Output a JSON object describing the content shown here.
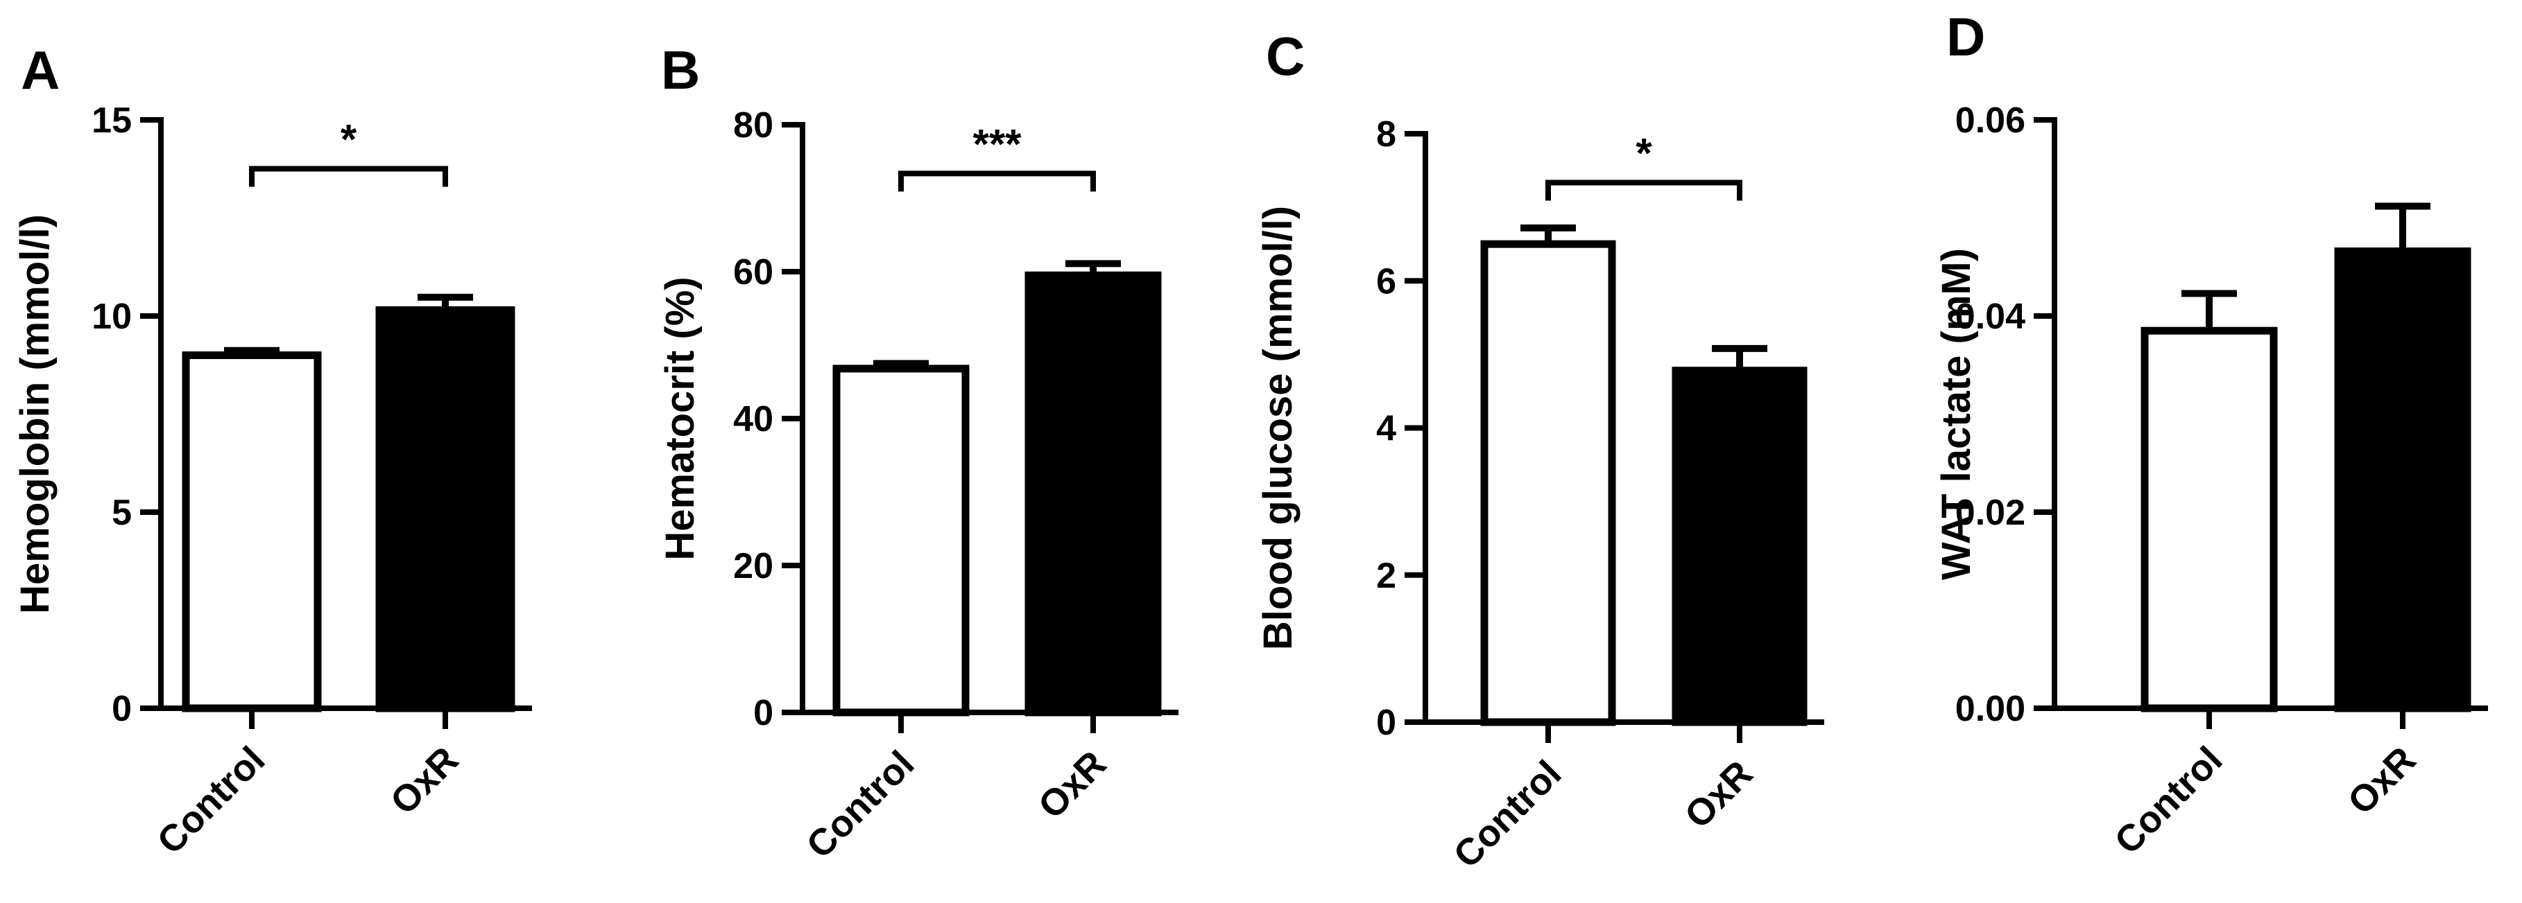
{
  "chart_data": [
    {
      "type": "bar",
      "panel_label": "A",
      "categories": [
        "Control",
        "OxR"
      ],
      "values": [
        9.0,
        10.15
      ],
      "errors": [
        0.12,
        0.33
      ],
      "bar_colors": [
        "#ffffff",
        "#000000"
      ],
      "ylabel": "Hemoglobin (mmol/l)",
      "ylim": [
        0,
        15
      ],
      "yticks": [
        0,
        5,
        10,
        15
      ],
      "ytick_labels": [
        "0",
        "5",
        "10",
        "15"
      ],
      "significance": "*"
    },
    {
      "type": "bar",
      "panel_label": "B",
      "categories": [
        "Control",
        "OxR"
      ],
      "values": [
        46.8,
        59.5
      ],
      "errors": [
        0.7,
        1.6
      ],
      "bar_colors": [
        "#ffffff",
        "#000000"
      ],
      "ylabel": "Hematocrit (%)",
      "ylim": [
        0,
        80
      ],
      "yticks": [
        0,
        20,
        40,
        60,
        80
      ],
      "ytick_labels": [
        "0",
        "20",
        "40",
        "60",
        "80"
      ],
      "significance": "***"
    },
    {
      "type": "bar",
      "panel_label": "C",
      "categories": [
        "Control",
        "OxR"
      ],
      "values": [
        6.5,
        4.78
      ],
      "errors": [
        0.22,
        0.3
      ],
      "bar_colors": [
        "#ffffff",
        "#000000"
      ],
      "ylabel": "Blood glucose (mmol/l)",
      "ylim": [
        0,
        8
      ],
      "yticks": [
        0,
        2,
        4,
        6,
        8
      ],
      "ytick_labels": [
        "0",
        "2",
        "4",
        "6",
        "8"
      ],
      "significance": "*"
    },
    {
      "type": "bar",
      "panel_label": "D",
      "categories": [
        "Control",
        "OxR"
      ],
      "values": [
        0.0385,
        0.0466
      ],
      "errors": [
        0.0038,
        0.0046
      ],
      "bar_colors": [
        "#ffffff",
        "#000000"
      ],
      "ylabel": "WAT lactate (mM)",
      "ylim": [
        0,
        0.06
      ],
      "yticks": [
        0,
        0.02,
        0.04,
        0.06
      ],
      "ytick_labels": [
        "0.00",
        "0.02",
        "0.04",
        "0.06"
      ],
      "significance": ""
    }
  ]
}
